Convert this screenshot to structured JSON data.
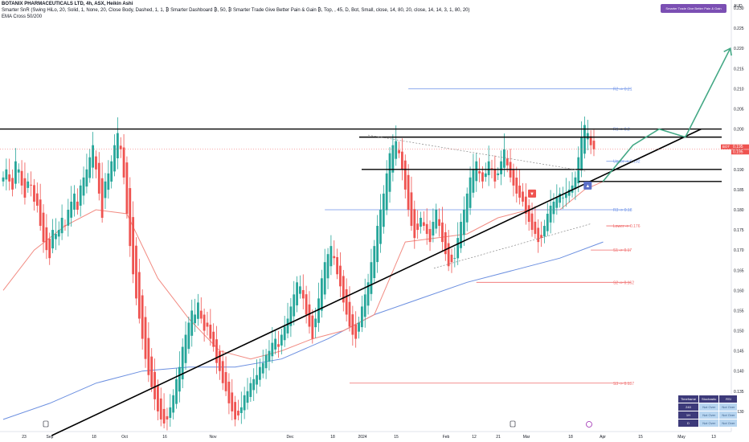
{
  "header": {
    "title": "BOTANIX PHARMACEUTICALS LTD, 4h, ASX, Heikin Ashi",
    "indicator1": "Smarter SnR (Swing HiLo, 20, Solid, 1, None, 20, Close Body, Dashed, 1, 1, ₿ Smarter Dashboard ₿, 50, ₿ Smarter Trade Give Better Pain & Gain ₿, Top, , 45, D, Bot, Small, close, 14, 80, 20, close, 14, 14, 3, 1, 80, 20)",
    "indicator2": "EMA Cross 50/200"
  },
  "promo_badge": "Smarter Trade Give Better Pain & Gain",
  "currency": "AUD",
  "price_tag": {
    "label": "BOT",
    "value": "0.195",
    "value2": "0.195"
  },
  "colors": {
    "up": "#26a69a",
    "down": "#ef5350",
    "ema50": "#f28b82",
    "ema200": "#6b8fe0",
    "resistance": "#6f93e8",
    "support": "#f06a6a",
    "trend": "#000000",
    "projection": "#43a885"
  },
  "chart_data": {
    "type": "candlestick",
    "ylim": [
      0.125,
      0.232
    ],
    "y_ticks": [
      "0.230",
      "0.225",
      "0.220",
      "0.215",
      "0.210",
      "0.205",
      "0.200",
      "0.195",
      "0.190",
      "0.185",
      "0.180",
      "0.175",
      "0.170",
      "0.165",
      "0.160",
      "0.155",
      "0.150",
      "0.145",
      "0.140",
      "0.135",
      "0.130"
    ],
    "x_labels": [
      "23",
      "Sep",
      "18",
      "Oct",
      "16",
      "Nov",
      "Dec",
      "18",
      "2024",
      "15",
      "Feb",
      "12",
      "21",
      "Mar",
      "18",
      "Apr",
      "15",
      "May",
      "13"
    ],
    "closes": [
      0.188,
      0.19,
      0.187,
      0.185,
      0.192,
      0.19,
      0.186,
      0.183,
      0.187,
      0.186,
      0.182,
      0.181,
      0.176,
      0.172,
      0.17,
      0.168,
      0.175,
      0.174,
      0.175,
      0.178,
      0.176,
      0.18,
      0.182,
      0.184,
      0.18,
      0.186,
      0.188,
      0.19,
      0.193,
      0.196,
      0.19,
      0.184,
      0.178,
      0.187,
      0.189,
      0.192,
      0.196,
      0.199,
      0.195,
      0.188,
      0.179,
      0.171,
      0.164,
      0.158,
      0.153,
      0.148,
      0.143,
      0.139,
      0.136,
      0.133,
      0.13,
      0.128,
      0.127,
      0.128,
      0.131,
      0.134,
      0.138,
      0.141,
      0.146,
      0.149,
      0.152,
      0.155,
      0.154,
      0.157,
      0.153,
      0.15,
      0.151,
      0.148,
      0.146,
      0.142,
      0.14,
      0.137,
      0.135,
      0.132,
      0.13,
      0.128,
      0.129,
      0.131,
      0.134,
      0.135,
      0.137,
      0.138,
      0.139,
      0.141,
      0.142,
      0.144,
      0.145,
      0.147,
      0.148,
      0.146,
      0.149,
      0.151,
      0.153,
      0.156,
      0.159,
      0.162,
      0.161,
      0.158,
      0.154,
      0.151,
      0.148,
      0.153,
      0.158,
      0.163,
      0.167,
      0.169,
      0.171,
      0.168,
      0.164,
      0.161,
      0.157,
      0.154,
      0.151,
      0.149,
      0.148,
      0.152,
      0.156,
      0.159,
      0.162,
      0.167,
      0.171,
      0.176,
      0.18,
      0.184,
      0.189,
      0.194,
      0.196,
      0.197,
      0.194,
      0.19,
      0.185,
      0.18,
      0.176,
      0.173,
      0.175,
      0.178,
      0.176,
      0.174,
      0.172,
      0.177,
      0.18,
      0.176,
      0.172,
      0.169,
      0.166,
      0.167,
      0.168,
      0.173,
      0.177,
      0.18,
      0.184,
      0.188,
      0.19,
      0.192,
      0.189,
      0.187,
      0.189,
      0.192,
      0.19,
      0.187,
      0.189,
      0.192,
      0.195,
      0.191,
      0.188,
      0.186,
      0.184,
      0.183,
      0.182,
      0.179,
      0.177,
      0.175,
      0.174,
      0.172,
      0.173,
      0.176,
      0.179,
      0.181,
      0.182,
      0.183,
      0.184,
      0.183,
      0.184,
      0.185,
      0.186,
      0.188,
      0.193,
      0.198,
      0.201,
      0.199,
      0.196,
      0.195
    ],
    "ema50_anchors": [
      [
        0,
        0.16
      ],
      [
        10,
        0.17
      ],
      [
        20,
        0.176
      ],
      [
        30,
        0.18
      ],
      [
        40,
        0.179
      ],
      [
        50,
        0.163
      ],
      [
        60,
        0.153
      ],
      [
        70,
        0.145
      ],
      [
        80,
        0.143
      ],
      [
        90,
        0.145
      ],
      [
        100,
        0.148
      ],
      [
        110,
        0.15
      ],
      [
        120,
        0.154
      ],
      [
        130,
        0.172
      ],
      [
        140,
        0.173
      ],
      [
        150,
        0.174
      ],
      [
        160,
        0.178
      ],
      [
        170,
        0.18
      ],
      [
        180,
        0.18
      ],
      [
        188,
        0.185
      ],
      [
        194,
        0.187
      ]
    ],
    "ema200_anchors": [
      [
        0,
        0.128
      ],
      [
        15,
        0.132
      ],
      [
        30,
        0.137
      ],
      [
        45,
        0.14
      ],
      [
        60,
        0.141
      ],
      [
        75,
        0.141
      ],
      [
        90,
        0.143
      ],
      [
        105,
        0.148
      ],
      [
        120,
        0.154
      ],
      [
        135,
        0.158
      ],
      [
        150,
        0.162
      ],
      [
        165,
        0.165
      ],
      [
        180,
        0.168
      ],
      [
        194,
        0.172
      ]
    ],
    "levels": [
      {
        "name": "R2",
        "label": "R2 -> 0.21",
        "value": 0.21,
        "kind": "resistance",
        "start": 131
      },
      {
        "name": "R1",
        "label": "R1 -> 0.2",
        "value": 0.2,
        "kind": "resistance",
        "start": 131
      },
      {
        "name": "Upper",
        "label": "Upper -> 0.192",
        "value": 0.192,
        "kind": "resistance",
        "start": 195
      },
      {
        "name": "R3",
        "label": "R3 -> 0.18",
        "value": 0.18,
        "kind": "resistance",
        "start": 104
      },
      {
        "name": "Lower",
        "label": "Lower -> 0.176",
        "value": 0.176,
        "kind": "support",
        "start": 195
      },
      {
        "name": "S1",
        "label": "S1 -> 0.17",
        "value": 0.17,
        "kind": "support",
        "start": 190
      },
      {
        "name": "S2",
        "label": "S2 -> 0.162",
        "value": 0.162,
        "kind": "support",
        "start": 153
      },
      {
        "name": "S3",
        "label": "S3 -> 0.137",
        "value": 0.137,
        "kind": "support",
        "start": 112
      }
    ],
    "horizontal_lines": [
      0.2,
      0.198,
      0.19,
      0.187
    ],
    "trendline": {
      "from": [
        0.069,
        0.124
      ],
      "to": [
        0.936,
        0.2
      ]
    },
    "projection_path": [
      [
        0.805,
        0.187
      ],
      [
        0.845,
        0.196
      ],
      [
        0.88,
        0.2
      ],
      [
        0.915,
        0.198
      ],
      [
        0.975,
        0.22
      ]
    ],
    "signals": [
      {
        "type": "sell",
        "index": 171,
        "value": 0.184
      },
      {
        "type": "buy",
        "index": 189,
        "value": 0.186
      }
    ]
  },
  "stoch_table": {
    "headers": [
      "Timeframe",
      "Stochastic",
      "RSI"
    ],
    "rows": [
      [
        "240",
        "Not Over",
        "Not Over"
      ],
      [
        "1H",
        "Not Over",
        "Not Over"
      ],
      [
        "D",
        "Not Over",
        "Not Over"
      ]
    ]
  }
}
